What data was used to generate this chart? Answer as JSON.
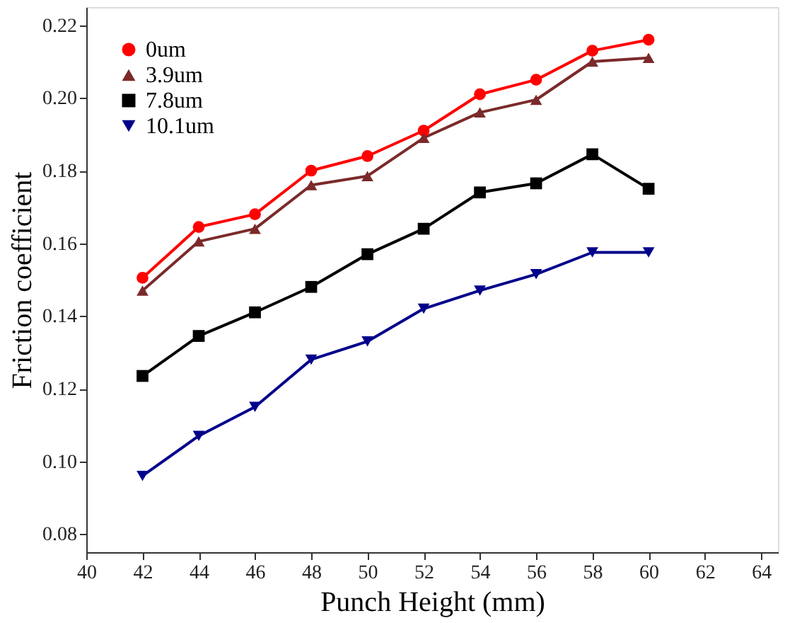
{
  "chart_data": {
    "type": "line",
    "xlabel": "Punch Height (mm)",
    "ylabel": "Friction coefficient",
    "x": [
      42,
      44,
      46,
      48,
      50,
      52,
      54,
      56,
      58,
      60
    ],
    "series": [
      {
        "name": "0um",
        "color": "#ff0000",
        "marker": "circle",
        "values": [
          0.1505,
          0.1645,
          0.168,
          0.18,
          0.184,
          0.191,
          0.201,
          0.205,
          0.213,
          0.216
        ]
      },
      {
        "name": "3.9um",
        "color": "#7b2a2a",
        "marker": "triangle",
        "values": [
          0.147,
          0.1605,
          0.164,
          0.176,
          0.1785,
          0.189,
          0.196,
          0.1995,
          0.21,
          0.211
        ]
      },
      {
        "name": "7.8um",
        "color": "#000000",
        "marker": "square",
        "values": [
          0.1235,
          0.1345,
          0.141,
          0.148,
          0.157,
          0.164,
          0.174,
          0.1765,
          0.1845,
          0.175
        ]
      },
      {
        "name": "10.1um",
        "color": "#00008b",
        "marker": "triangle-down",
        "values": [
          0.096,
          0.107,
          0.115,
          0.128,
          0.133,
          0.142,
          0.147,
          0.1515,
          0.1575,
          0.1575
        ]
      }
    ],
    "xlim": [
      40,
      64.6
    ],
    "xticks": [
      40,
      42,
      44,
      46,
      48,
      50,
      52,
      54,
      56,
      58,
      60,
      62,
      64
    ],
    "ylim": [
      0.075,
      0.225
    ],
    "yticks": [
      {
        "value": 0.08,
        "label": "0.08"
      },
      {
        "value": 0.1,
        "label": "0.10"
      },
      {
        "value": 0.12,
        "label": "0.12"
      },
      {
        "value": 0.14,
        "label": "0.14"
      },
      {
        "value": 0.16,
        "label": "0.16"
      },
      {
        "value": 0.18,
        "label": "0.18"
      },
      {
        "value": 0.2,
        "label": "0.20"
      },
      {
        "value": 0.22,
        "label": "0.22"
      }
    ],
    "legend": "top left",
    "grid": false,
    "line_style": "solid"
  }
}
